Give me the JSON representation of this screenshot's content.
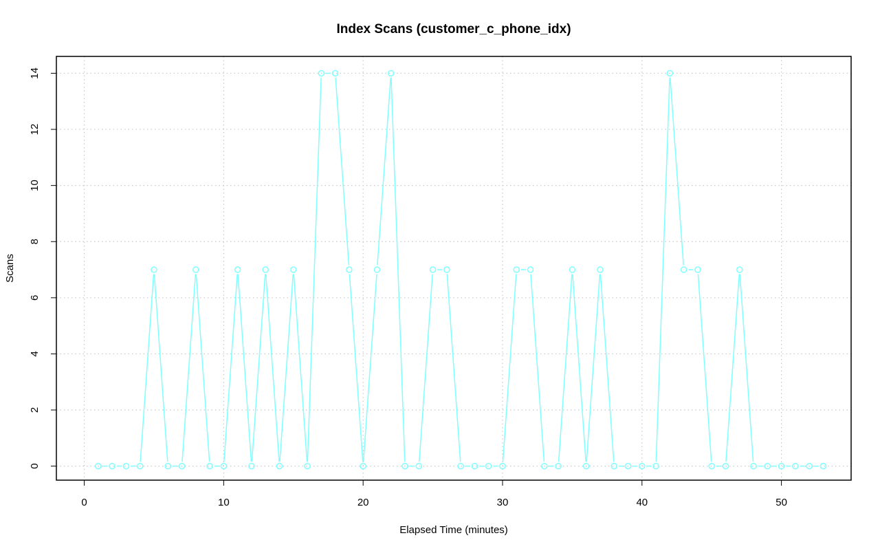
{
  "chart_data": {
    "type": "line",
    "title": "Index Scans (customer_c_phone_idx)",
    "xlabel": "Elapsed Time (minutes)",
    "ylabel": "Scans",
    "xlim": [
      -2,
      55
    ],
    "ylim": [
      -0.5,
      14.6
    ],
    "x_ticks": [
      0,
      10,
      20,
      30,
      40,
      50
    ],
    "y_ticks": [
      0,
      2,
      4,
      6,
      8,
      10,
      12,
      14
    ],
    "grid": true,
    "color": "#7fffff",
    "series": [
      {
        "x": [
          1,
          2,
          3,
          4,
          5,
          6,
          7,
          8,
          9,
          10,
          11,
          12,
          13,
          14,
          15,
          16,
          17,
          18,
          19,
          20,
          21,
          22,
          23,
          24,
          25,
          26,
          27,
          28,
          29,
          30,
          31,
          32,
          33,
          34,
          35,
          36,
          37,
          38,
          39,
          40,
          41,
          42,
          43,
          44,
          45,
          46,
          47,
          48,
          49,
          50,
          51,
          52,
          53
        ],
        "values": [
          0,
          0,
          0,
          0,
          7,
          0,
          0,
          7,
          0,
          0,
          7,
          0,
          7,
          0,
          7,
          0,
          14,
          14,
          7,
          0,
          7,
          14,
          0,
          0,
          7,
          7,
          0,
          0,
          0,
          0,
          7,
          7,
          0,
          0,
          7,
          0,
          7,
          0,
          0,
          0,
          0,
          14,
          7,
          7,
          0,
          0,
          7,
          0,
          0,
          0,
          0,
          0,
          0
        ]
      }
    ]
  }
}
